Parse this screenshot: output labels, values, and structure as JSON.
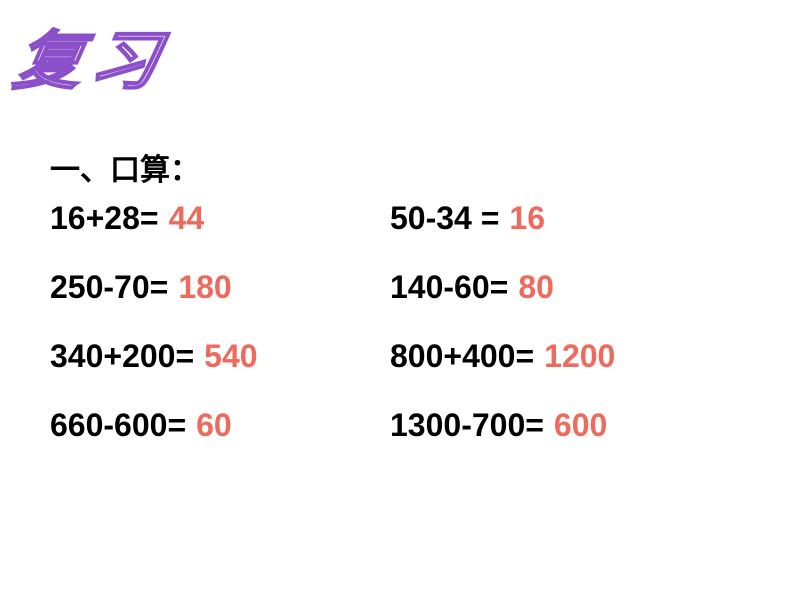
{
  "title": "复习",
  "section_header": "一、口算：",
  "colors": {
    "background": "#ffffff",
    "title_stroke": "#8b4fc9",
    "title_fill": "#ffffff",
    "problem_text": "#000000",
    "answer_text": "#ed6a5c",
    "section_text": "#000000"
  },
  "typography": {
    "title_fontsize": 64,
    "title_weight": "bold",
    "title_style": "italic",
    "section_fontsize": 30,
    "section_weight": "bold",
    "problem_fontsize": 32,
    "problem_weight": "bold",
    "answer_fontsize": 32,
    "answer_weight": "bold"
  },
  "problems": {
    "rows": [
      {
        "left": {
          "expr": "16+28=",
          "answer": "44"
        },
        "right": {
          "expr": "50-34 =",
          "answer": "16"
        }
      },
      {
        "left": {
          "expr": "250-70=",
          "answer": "180"
        },
        "right": {
          "expr": "140-60=",
          "answer": "80"
        }
      },
      {
        "left": {
          "expr": "340+200=",
          "answer": "540"
        },
        "right": {
          "expr": "800+400=",
          "answer": "1200"
        }
      },
      {
        "left": {
          "expr": "660-600=",
          "answer": "60"
        },
        "right": {
          "expr": "1300-700=",
          "answer": "600"
        }
      }
    ]
  }
}
